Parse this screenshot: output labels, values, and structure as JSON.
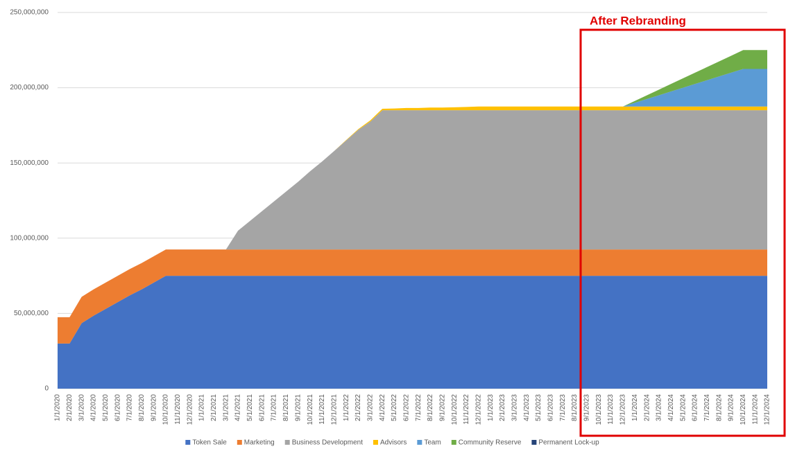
{
  "chart_data": {
    "type": "stacked_area",
    "annotation": "After Rebranding",
    "categories": [
      "1/1/2020",
      "2/1/2020",
      "3/1/2020",
      "4/1/2020",
      "5/1/2020",
      "6/1/2020",
      "7/1/2020",
      "8/1/2020",
      "9/1/2020",
      "10/1/2020",
      "11/1/2020",
      "12/1/2020",
      "1/1/2021",
      "2/1/2021",
      "3/1/2021",
      "4/1/2021",
      "5/1/2021",
      "6/1/2021",
      "7/1/2021",
      "8/1/2021",
      "9/1/2021",
      "10/1/2021",
      "11/1/2021",
      "12/1/2021",
      "1/1/2022",
      "2/1/2022",
      "3/1/2022",
      "4/1/2022",
      "5/1/2022",
      "6/1/2022",
      "7/1/2022",
      "8/1/2022",
      "9/1/2022",
      "10/1/2022",
      "11/1/2022",
      "12/1/2022",
      "1/1/2023",
      "2/1/2023",
      "3/1/2023",
      "4/1/2023",
      "5/1/2023",
      "6/1/2023",
      "7/1/2023",
      "8/1/2023",
      "9/1/2023",
      "10/1/2023",
      "11/1/2023",
      "12/1/2023",
      "1/1/2024",
      "2/1/2024",
      "3/1/2024",
      "4/1/2024",
      "5/1/2024",
      "6/1/2024",
      "7/1/2024",
      "8/1/2024",
      "9/1/2024",
      "10/1/2024",
      "11/1/2024",
      "12/1/2024"
    ],
    "series": [
      {
        "name": "Token Sale",
        "color": "#4472c4",
        "values": [
          30000000,
          30000000,
          43500000,
          48500000,
          53000000,
          57500000,
          62000000,
          66000000,
          70500000,
          75000000,
          75000000,
          75000000,
          75000000,
          75000000,
          75000000,
          75000000,
          75000000,
          75000000,
          75000000,
          75000000,
          75000000,
          75000000,
          75000000,
          75000000,
          75000000,
          75000000,
          75000000,
          75000000,
          75000000,
          75000000,
          75000000,
          75000000,
          75000000,
          75000000,
          75000000,
          75000000,
          75000000,
          75000000,
          75000000,
          75000000,
          75000000,
          75000000,
          75000000,
          75000000,
          75000000,
          75000000,
          75000000,
          75000000,
          75000000,
          75000000,
          75000000,
          75000000,
          75000000,
          75000000,
          75000000,
          75000000,
          75000000,
          75000000,
          75000000,
          75000000
        ]
      },
      {
        "name": "Marketing",
        "color": "#ed7d31",
        "values": [
          17500000,
          17500000,
          17500000,
          17500000,
          17500000,
          17500000,
          17500000,
          17500000,
          17500000,
          17500000,
          17500000,
          17500000,
          17500000,
          17500000,
          17500000,
          17500000,
          17500000,
          17500000,
          17500000,
          17500000,
          17500000,
          17500000,
          17500000,
          17500000,
          17500000,
          17500000,
          17500000,
          17500000,
          17500000,
          17500000,
          17500000,
          17500000,
          17500000,
          17500000,
          17500000,
          17500000,
          17500000,
          17500000,
          17500000,
          17500000,
          17500000,
          17500000,
          17500000,
          17500000,
          17500000,
          17500000,
          17500000,
          17500000,
          17500000,
          17500000,
          17500000,
          17500000,
          17500000,
          17500000,
          17500000,
          17500000,
          17500000,
          17500000,
          17500000,
          17500000
        ]
      },
      {
        "name": "Business Development",
        "color": "#a5a5a5",
        "values": [
          0,
          0,
          0,
          0,
          0,
          0,
          0,
          0,
          0,
          0,
          0,
          0,
          0,
          0,
          0,
          12500000,
          19000000,
          25500000,
          32000000,
          38500000,
          45000000,
          52000000,
          58500000,
          65500000,
          72500000,
          79500000,
          85000000,
          92500000,
          92500000,
          92500000,
          92500000,
          92500000,
          92500000,
          92500000,
          92500000,
          92500000,
          92500000,
          92500000,
          92500000,
          92500000,
          92500000,
          92500000,
          92500000,
          92500000,
          92500000,
          92500000,
          92500000,
          92500000,
          92500000,
          92500000,
          92500000,
          92500000,
          92500000,
          92500000,
          92500000,
          92500000,
          92500000,
          92500000,
          92500000,
          92500000
        ]
      },
      {
        "name": "Advisors",
        "color": "#ffc000",
        "values": [
          0,
          0,
          0,
          0,
          0,
          0,
          0,
          0,
          0,
          0,
          0,
          0,
          0,
          0,
          0,
          0,
          0,
          0,
          0,
          0,
          0,
          0,
          0,
          0,
          300000,
          500000,
          800000,
          1000000,
          1200000,
          1500000,
          1500000,
          1800000,
          1800000,
          2000000,
          2200000,
          2500000,
          2500000,
          2500000,
          2500000,
          2500000,
          2500000,
          2500000,
          2500000,
          2500000,
          2500000,
          2500000,
          2500000,
          2500000,
          2500000,
          2500000,
          2500000,
          2500000,
          2500000,
          2500000,
          2500000,
          2500000,
          2500000,
          2500000,
          2500000,
          2500000
        ]
      },
      {
        "name": "Team",
        "color": "#5b9bd5",
        "values": [
          0,
          0,
          0,
          0,
          0,
          0,
          0,
          0,
          0,
          0,
          0,
          0,
          0,
          0,
          0,
          0,
          0,
          0,
          0,
          0,
          0,
          0,
          0,
          0,
          0,
          0,
          0,
          0,
          0,
          0,
          0,
          0,
          0,
          0,
          0,
          0,
          0,
          0,
          0,
          0,
          0,
          0,
          0,
          0,
          0,
          0,
          0,
          0,
          2500000,
          5000000,
          7500000,
          10000000,
          12500000,
          15000000,
          17500000,
          20000000,
          22500000,
          25000000,
          25000000,
          25000000
        ]
      },
      {
        "name": "Community Reserve",
        "color": "#70ad47",
        "values": [
          0,
          0,
          0,
          0,
          0,
          0,
          0,
          0,
          0,
          0,
          0,
          0,
          0,
          0,
          0,
          0,
          0,
          0,
          0,
          0,
          0,
          0,
          0,
          0,
          0,
          0,
          0,
          0,
          0,
          0,
          0,
          0,
          0,
          0,
          0,
          0,
          0,
          0,
          0,
          0,
          0,
          0,
          0,
          0,
          0,
          0,
          0,
          0,
          1250000,
          2500000,
          3750000,
          5000000,
          6250000,
          7500000,
          8750000,
          10000000,
          11250000,
          12500000,
          12500000,
          12500000
        ]
      },
      {
        "name": "Permanent Lock-up",
        "color": "#264478",
        "values": [
          0,
          0,
          0,
          0,
          0,
          0,
          0,
          0,
          0,
          0,
          0,
          0,
          0,
          0,
          0,
          0,
          0,
          0,
          0,
          0,
          0,
          0,
          0,
          0,
          0,
          0,
          0,
          0,
          0,
          0,
          0,
          0,
          0,
          0,
          0,
          0,
          0,
          0,
          0,
          0,
          0,
          0,
          0,
          0,
          0,
          0,
          0,
          0,
          0,
          0,
          0,
          0,
          0,
          0,
          0,
          0,
          0,
          0,
          0,
          0
        ]
      }
    ],
    "ylim": [
      0,
      250000000
    ],
    "yticks": [
      0,
      {
        "value": 50000000,
        "label": "50,000,000"
      },
      {
        "value": 100000000,
        "label": "100,000,000"
      },
      {
        "value": 150000000,
        "label": "150,000,000"
      },
      {
        "value": 200000000,
        "label": "200,000,000"
      },
      {
        "value": 250000000,
        "label": "250,000,000"
      }
    ],
    "grid": true
  }
}
